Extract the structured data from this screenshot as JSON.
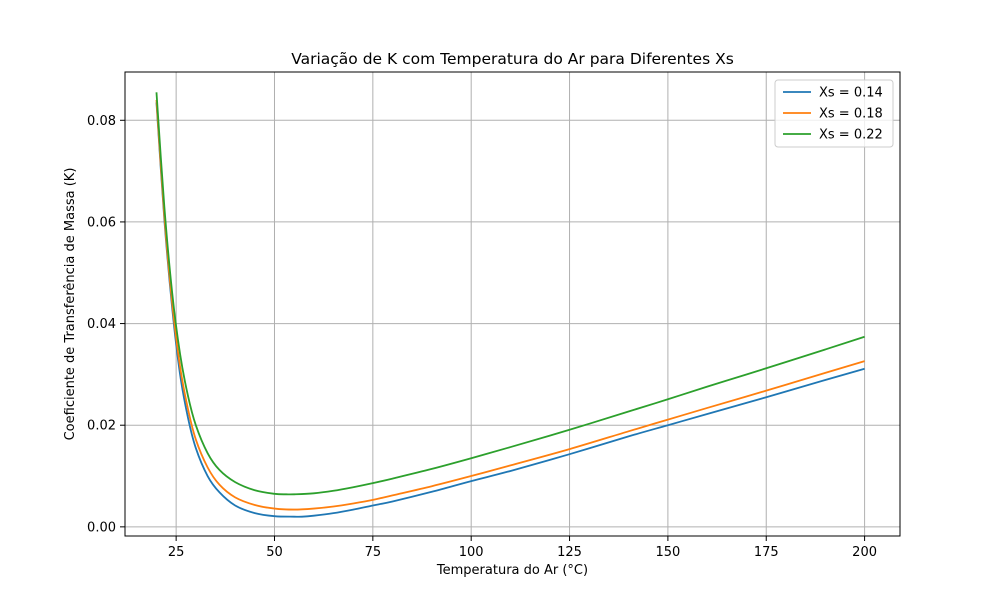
{
  "chart_data": {
    "type": "line",
    "title": "Variação de K com Temperatura do Ar para Diferentes Xs",
    "xlabel": "Temperatura do Ar (°C)",
    "ylabel": "Coeficiente de Transferência de Massa (K)",
    "xlim": [
      12,
      209
    ],
    "ylim": [
      -0.0018,
      0.0895
    ],
    "xticks": [
      25,
      50,
      75,
      100,
      125,
      150,
      175,
      200
    ],
    "xtick_labels": [
      "25",
      "50",
      "75",
      "100",
      "125",
      "150",
      "175",
      "200"
    ],
    "yticks": [
      0.0,
      0.02,
      0.04,
      0.06,
      0.08
    ],
    "ytick_labels": [
      "0.00",
      "0.02",
      "0.04",
      "0.06",
      "0.08"
    ],
    "grid": true,
    "legend_position": "top-right",
    "series": [
      {
        "name": "Xs = 0.14",
        "color": "#1f77b4",
        "x": [
          20,
          22,
          24,
          26,
          28,
          30,
          33,
          36,
          40,
          45,
          50,
          55,
          57,
          60,
          65,
          70,
          75,
          80,
          90,
          100,
          110,
          125,
          140,
          150,
          160,
          175,
          190,
          200
        ],
        "y": [
          0.0835,
          0.0605,
          0.043,
          0.03,
          0.0215,
          0.0155,
          0.01,
          0.0068,
          0.0042,
          0.0027,
          0.0021,
          0.002,
          0.002,
          0.0022,
          0.0027,
          0.0034,
          0.0042,
          0.005,
          0.0069,
          0.009,
          0.011,
          0.0143,
          0.0178,
          0.02,
          0.0222,
          0.0255,
          0.0289,
          0.0311
        ]
      },
      {
        "name": "Xs = 0.18",
        "color": "#ff7f0e",
        "x": [
          20,
          22,
          24,
          26,
          28,
          30,
          33,
          36,
          40,
          45,
          50,
          55,
          60,
          65,
          70,
          75,
          80,
          90,
          100,
          110,
          125,
          140,
          150,
          160,
          175,
          190,
          200
        ],
        "y": [
          0.084,
          0.0612,
          0.044,
          0.0315,
          0.0232,
          0.0172,
          0.0117,
          0.0083,
          0.0058,
          0.0043,
          0.0036,
          0.0034,
          0.0036,
          0.004,
          0.0046,
          0.0053,
          0.0062,
          0.008,
          0.01,
          0.0121,
          0.0153,
          0.0188,
          0.0211,
          0.0234,
          0.0268,
          0.0303,
          0.0326
        ]
      },
      {
        "name": "Xs = 0.22",
        "color": "#2ca02c",
        "x": [
          20,
          22,
          24,
          26,
          28,
          30,
          33,
          36,
          40,
          45,
          50,
          53,
          55,
          60,
          65,
          70,
          75,
          80,
          90,
          100,
          110,
          125,
          140,
          150,
          160,
          175,
          190,
          200
        ],
        "y": [
          0.0855,
          0.063,
          0.046,
          0.034,
          0.0258,
          0.02,
          0.0145,
          0.0112,
          0.0088,
          0.0072,
          0.0065,
          0.0064,
          0.0064,
          0.0066,
          0.0071,
          0.0078,
          0.0086,
          0.0095,
          0.0114,
          0.0135,
          0.0157,
          0.0191,
          0.0227,
          0.0251,
          0.0276,
          0.0312,
          0.0349,
          0.0374
        ]
      }
    ]
  }
}
